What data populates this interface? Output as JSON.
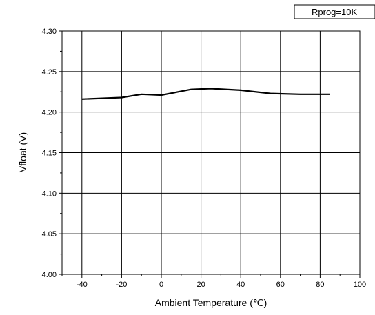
{
  "chart_data": {
    "type": "line",
    "title": "",
    "xlabel": "Ambient Temperature (℃)",
    "ylabel": "Vfloat (V)",
    "annotation": "Rprog=10K",
    "xlim": [
      -50,
      100
    ],
    "ylim": [
      4.0,
      4.3
    ],
    "xticks": [
      -40,
      -20,
      0,
      20,
      40,
      60,
      80,
      100
    ],
    "xtick_labels": [
      "-40",
      "-20",
      "0",
      "20",
      "40",
      "60",
      "80",
      "100"
    ],
    "yticks": [
      4.0,
      4.05,
      4.1,
      4.15,
      4.2,
      4.25,
      4.3
    ],
    "ytick_labels": [
      "4.00",
      "4.05",
      "4.10",
      "4.15",
      "4.20",
      "4.25",
      "4.30"
    ],
    "grid": true,
    "series": [
      {
        "x": [
          -40,
          -20,
          -10,
          0,
          15,
          25,
          40,
          55,
          70,
          85
        ],
        "y": [
          4.216,
          4.218,
          4.222,
          4.221,
          4.228,
          4.229,
          4.227,
          4.223,
          4.222,
          4.222
        ],
        "color": "#000000"
      }
    ]
  }
}
